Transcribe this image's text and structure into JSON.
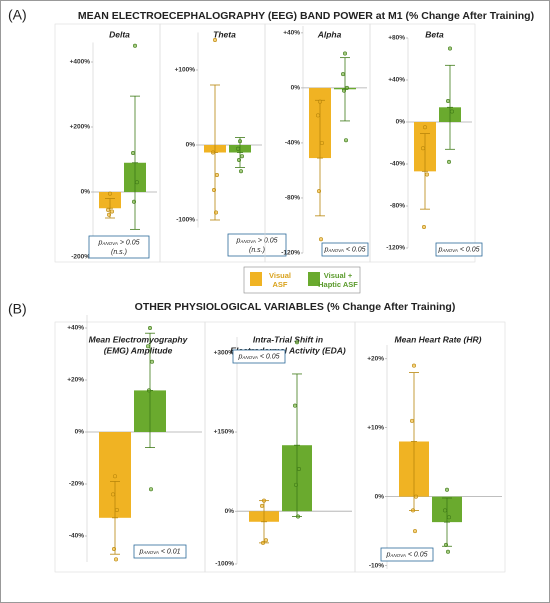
{
  "panels": [
    {
      "label": "(A)",
      "title": "MEAN ELECTROECEPHALOGRAPHY (EEG) BAND POWER at M1 (% Change After Training)"
    },
    {
      "label": "(B)",
      "title": "OTHER PHYSIOLOGICAL VARIABLES (% Change After Training)"
    }
  ],
  "legend": [
    {
      "lines": [
        "Visual",
        "ASF"
      ],
      "color": "#f0b323",
      "text_color": "#d9a21c"
    },
    {
      "lines": [
        "Visual +",
        "Haptic ASF"
      ],
      "color": "#6aaa2e",
      "text_color": "#5a9a2a"
    }
  ],
  "chart_data": [
    {
      "type": "bar",
      "title": [
        "Delta"
      ],
      "ylim": [
        -200,
        460
      ],
      "yticks": [
        {
          "value": -200,
          "label": "-200%"
        },
        {
          "value": 0,
          "label": "0%"
        },
        {
          "value": 200,
          "label": "+200%"
        },
        {
          "value": 400,
          "label": "+400%"
        }
      ],
      "series": [
        {
          "color": "#f0b323",
          "values": [
            -50
          ],
          "error": [
            30
          ],
          "points": [
            -5,
            -55,
            -60,
            -70
          ]
        },
        {
          "color": "#6aaa2e",
          "values": [
            90
          ],
          "error": [
            205
          ],
          "points": [
            450,
            120,
            30,
            -30
          ]
        }
      ],
      "annotation": {
        "p": "p",
        "sub": "ANOVA",
        "text": " > 0.05",
        "note": "(n.s.)"
      }
    },
    {
      "type": "bar",
      "title": [
        "Theta"
      ],
      "ylim": [
        -110,
        150
      ],
      "yticks": [
        {
          "value": -100,
          "label": "-100%"
        },
        {
          "value": 0,
          "label": "0%"
        },
        {
          "value": 100,
          "label": "+100%"
        }
      ],
      "series": [
        {
          "color": "#f0b323",
          "values": [
            -10
          ],
          "error": [
            90
          ],
          "points": [
            140,
            -10,
            -40,
            -60,
            -90
          ]
        },
        {
          "color": "#6aaa2e",
          "values": [
            -10
          ],
          "error": [
            20
          ],
          "points": [
            5,
            -5,
            -15,
            -20,
            -35
          ]
        }
      ],
      "annotation": {
        "p": "p",
        "sub": "ANOVA",
        "text": " > 0.05",
        "note": "(n.s.)"
      }
    },
    {
      "type": "bar",
      "title": [
        "Alpha"
      ],
      "ylim": [
        -120,
        45
      ],
      "yticks": [
        {
          "value": -120,
          "label": "-120%"
        },
        {
          "value": -80,
          "label": "-80%"
        },
        {
          "value": -40,
          "label": "-40%"
        },
        {
          "value": 0,
          "label": "0%"
        },
        {
          "value": 40,
          "label": "+40%"
        }
      ],
      "series": [
        {
          "color": "#f0b323",
          "values": [
            -51
          ],
          "error": [
            42
          ],
          "points": [
            -10,
            -20,
            -40,
            -75,
            -110
          ]
        },
        {
          "color": "#6aaa2e",
          "values": [
            -1
          ],
          "error": [
            23
          ],
          "points": [
            25,
            10,
            0,
            -2,
            -38
          ]
        }
      ],
      "annotation": {
        "p": "p",
        "sub": "ANOVA",
        "text": " < 0.05"
      }
    },
    {
      "type": "bar",
      "title": [
        "Beta"
      ],
      "ylim": [
        -120,
        80
      ],
      "yticks": [
        {
          "value": -120,
          "label": "-120%"
        },
        {
          "value": -80,
          "label": "-80%"
        },
        {
          "value": -40,
          "label": "-40%"
        },
        {
          "value": 0,
          "label": "0%"
        },
        {
          "value": 40,
          "label": "+40%"
        },
        {
          "value": 80,
          "label": "+80%"
        }
      ],
      "series": [
        {
          "color": "#f0b323",
          "values": [
            -47
          ],
          "error": [
            36
          ],
          "points": [
            -5,
            -25,
            -50,
            -100
          ]
        },
        {
          "color": "#6aaa2e",
          "values": [
            14
          ],
          "error": [
            40
          ],
          "points": [
            70,
            20,
            10,
            -38
          ]
        }
      ],
      "annotation": {
        "p": "p",
        "sub": "ANOVA",
        "text": " < 0.05"
      }
    },
    {
      "type": "bar",
      "title": [
        "Mean Electromyography",
        "(EMG) Amplitude"
      ],
      "ylim": [
        -50,
        45
      ],
      "yticks": [
        {
          "value": -40,
          "label": "-40%"
        },
        {
          "value": -20,
          "label": "-20%"
        },
        {
          "value": 0,
          "label": "0%"
        },
        {
          "value": 20,
          "label": "+20%"
        },
        {
          "value": 40,
          "label": "+40%"
        }
      ],
      "series": [
        {
          "color": "#f0b323",
          "values": [
            -33
          ],
          "error": [
            14
          ],
          "points": [
            -17,
            -24,
            -30,
            -45,
            -49
          ]
        },
        {
          "color": "#6aaa2e",
          "values": [
            16
          ],
          "error": [
            22
          ],
          "points": [
            40,
            33,
            27,
            16,
            -22
          ]
        }
      ],
      "annotation": {
        "p": "p",
        "sub": "ANOVA",
        "text": " < 0.01"
      }
    },
    {
      "type": "bar",
      "title": [
        "Intra-Trial Shift in",
        "Electrodermal Activity (EDA)"
      ],
      "ylim": [
        -100,
        330
      ],
      "yticks": [
        {
          "value": -100,
          "label": "-100%"
        },
        {
          "value": 0,
          "label": "0%"
        },
        {
          "value": 150,
          "label": "+150%"
        },
        {
          "value": 300,
          "label": "+300%"
        }
      ],
      "series": [
        {
          "color": "#f0b323",
          "values": [
            -20
          ],
          "error": [
            40
          ],
          "points": [
            20,
            10,
            -55,
            -60
          ]
        },
        {
          "color": "#6aaa2e",
          "values": [
            125
          ],
          "error": [
            135
          ],
          "points": [
            320,
            200,
            80,
            50,
            -10
          ]
        }
      ],
      "annotation": {
        "p": "p",
        "sub": "ANOVA",
        "text": " < 0.05"
      }
    },
    {
      "type": "bar",
      "title": [
        "Mean Heart Rate (HR)"
      ],
      "ylim": [
        -10.5,
        22
      ],
      "yticks": [
        {
          "value": -10,
          "label": "-10%"
        },
        {
          "value": 0,
          "label": "0%"
        },
        {
          "value": 10,
          "label": "+10%"
        },
        {
          "value": 20,
          "label": "+20%"
        }
      ],
      "series": [
        {
          "color": "#f0b323",
          "values": [
            8
          ],
          "error": [
            10
          ],
          "points": [
            19,
            11,
            0,
            -2,
            -5
          ]
        },
        {
          "color": "#6aaa2e",
          "values": [
            -3.7
          ],
          "error": [
            3.5
          ],
          "points": [
            1,
            -2,
            -3,
            -7,
            -8
          ]
        }
      ],
      "annotation": {
        "p": "p",
        "sub": "ANOVA",
        "text": " < 0.05"
      }
    }
  ]
}
